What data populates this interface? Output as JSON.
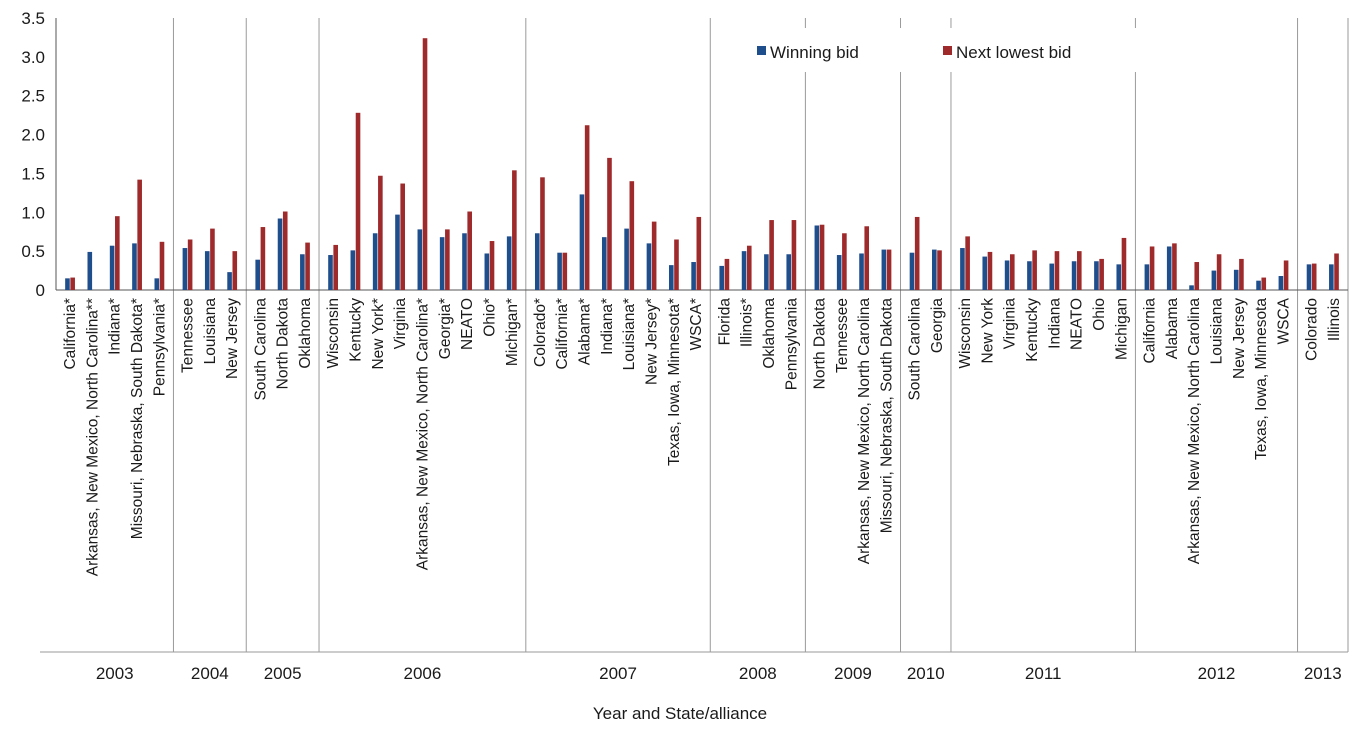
{
  "chart_data": {
    "type": "bar",
    "xlabel": "Year and State/alliance",
    "ylabel": "",
    "ylim": [
      0,
      3.5
    ],
    "yticks": [
      "0",
      "0.5",
      "1.0",
      "1.5",
      "2.0",
      "2.5",
      "3.0",
      "3.5"
    ],
    "grid": false,
    "legend_position": "top-right",
    "colors": {
      "winning": "#1f4e8c",
      "next": "#9e2a2b"
    },
    "series": [
      {
        "name": "Winning bid",
        "key": "winning"
      },
      {
        "name": "Next lowest bid",
        "key": "next"
      }
    ],
    "groups": [
      {
        "year": "2003",
        "items": [
          {
            "label": "California*",
            "winning": 0.15,
            "next": 0.16
          },
          {
            "label": "Arkansas, New Mexico, North Carolina**",
            "winning": 0.49,
            "next": null
          },
          {
            "label": "Indiana*",
            "winning": 0.57,
            "next": 0.95
          },
          {
            "label": "Missouri, Nebraska, South Dakota*",
            "winning": 0.6,
            "next": 1.42
          },
          {
            "label": "Pennsylvania*",
            "winning": 0.15,
            "next": 0.62
          }
        ]
      },
      {
        "year": "2004",
        "items": [
          {
            "label": "Tennessee",
            "winning": 0.54,
            "next": 0.65
          },
          {
            "label": "Louisiana",
            "winning": 0.5,
            "next": 0.79
          },
          {
            "label": "New Jersey",
            "winning": 0.23,
            "next": 0.5
          }
        ]
      },
      {
        "year": "2005",
        "items": [
          {
            "label": "South Carolina",
            "winning": 0.39,
            "next": 0.81
          },
          {
            "label": "North Dakota",
            "winning": 0.92,
            "next": 1.01
          },
          {
            "label": "Oklahoma",
            "winning": 0.46,
            "next": 0.61
          }
        ]
      },
      {
        "year": "2006",
        "items": [
          {
            "label": "Wisconsin",
            "winning": 0.45,
            "next": 0.58
          },
          {
            "label": "Kentucky",
            "winning": 0.51,
            "next": 2.28
          },
          {
            "label": "New York*",
            "winning": 0.73,
            "next": 1.47
          },
          {
            "label": "Virginia",
            "winning": 0.97,
            "next": 1.37
          },
          {
            "label": "Arkansas, New Mexico, North Carolina*",
            "winning": 0.78,
            "next": 3.24
          },
          {
            "label": "Georgia*",
            "winning": 0.68,
            "next": 0.78
          },
          {
            "label": "NEATO",
            "winning": 0.73,
            "next": 1.01
          },
          {
            "label": "Ohio*",
            "winning": 0.47,
            "next": 0.63
          },
          {
            "label": "Michigan*",
            "winning": 0.69,
            "next": 1.54
          }
        ]
      },
      {
        "year": "2007",
        "items": [
          {
            "label": "Colorado*",
            "winning": 0.73,
            "next": 1.45
          },
          {
            "label": "California*",
            "winning": 0.48,
            "next": 0.48
          },
          {
            "label": "Alabama*",
            "winning": 1.23,
            "next": 2.12
          },
          {
            "label": "Indiana*",
            "winning": 0.68,
            "next": 1.7
          },
          {
            "label": "Louisiana*",
            "winning": 0.79,
            "next": 1.4
          },
          {
            "label": "New Jersey*",
            "winning": 0.6,
            "next": 0.88
          },
          {
            "label": "Texas, Iowa, Minnesota*",
            "winning": 0.32,
            "next": 0.65
          },
          {
            "label": "WSCA*",
            "winning": 0.36,
            "next": 0.94
          }
        ]
      },
      {
        "year": "2008",
        "items": [
          {
            "label": "Florida",
            "winning": 0.31,
            "next": 0.4
          },
          {
            "label": "Illinois*",
            "winning": 0.5,
            "next": 0.57
          },
          {
            "label": "Oklahoma",
            "winning": 0.46,
            "next": 0.9
          },
          {
            "label": "Pennsylvania",
            "winning": 0.46,
            "next": 0.9
          }
        ]
      },
      {
        "year": "2009",
        "items": [
          {
            "label": "North Dakota",
            "winning": 0.83,
            "next": 0.84
          },
          {
            "label": "Tennessee",
            "winning": 0.45,
            "next": 0.73
          },
          {
            "label": "Arkansas, New Mexico, North Carolina",
            "winning": 0.47,
            "next": 0.82
          },
          {
            "label": "Missouri, Nebraska, South Dakota",
            "winning": 0.52,
            "next": 0.52
          }
        ]
      },
      {
        "year": "2010",
        "items": [
          {
            "label": "South Carolina",
            "winning": 0.48,
            "next": 0.94
          },
          {
            "label": "Georgia",
            "winning": 0.52,
            "next": 0.51
          }
        ]
      },
      {
        "year": "2011",
        "items": [
          {
            "label": "Wisconsin",
            "winning": 0.54,
            "next": 0.69
          },
          {
            "label": "New York",
            "winning": 0.43,
            "next": 0.49
          },
          {
            "label": "Virginia",
            "winning": 0.38,
            "next": 0.46
          },
          {
            "label": "Kentucky",
            "winning": 0.37,
            "next": 0.51
          },
          {
            "label": "Indiana",
            "winning": 0.34,
            "next": 0.5
          },
          {
            "label": "NEATO",
            "winning": 0.37,
            "next": 0.5
          },
          {
            "label": "Ohio",
            "winning": 0.37,
            "next": 0.4
          },
          {
            "label": "Michigan",
            "winning": 0.33,
            "next": 0.67
          }
        ]
      },
      {
        "year": "2012",
        "items": [
          {
            "label": "California",
            "winning": 0.33,
            "next": 0.56
          },
          {
            "label": "Alabama",
            "winning": 0.56,
            "next": 0.6
          },
          {
            "label": "Arkansas, New Mexico, North Carolina",
            "winning": 0.06,
            "next": 0.36
          },
          {
            "label": "Louisiana",
            "winning": 0.25,
            "next": 0.46
          },
          {
            "label": "New Jersey",
            "winning": 0.26,
            "next": 0.4
          },
          {
            "label": "Texas, Iowa, Minnesota",
            "winning": 0.12,
            "next": 0.16
          },
          {
            "label": "WSCA",
            "winning": 0.18,
            "next": 0.38
          }
        ]
      },
      {
        "year": "2013",
        "items": [
          {
            "label": "Colorado",
            "winning": 0.33,
            "next": 0.34
          },
          {
            "label": "Illinois",
            "winning": 0.33,
            "next": 0.47
          }
        ]
      }
    ]
  }
}
